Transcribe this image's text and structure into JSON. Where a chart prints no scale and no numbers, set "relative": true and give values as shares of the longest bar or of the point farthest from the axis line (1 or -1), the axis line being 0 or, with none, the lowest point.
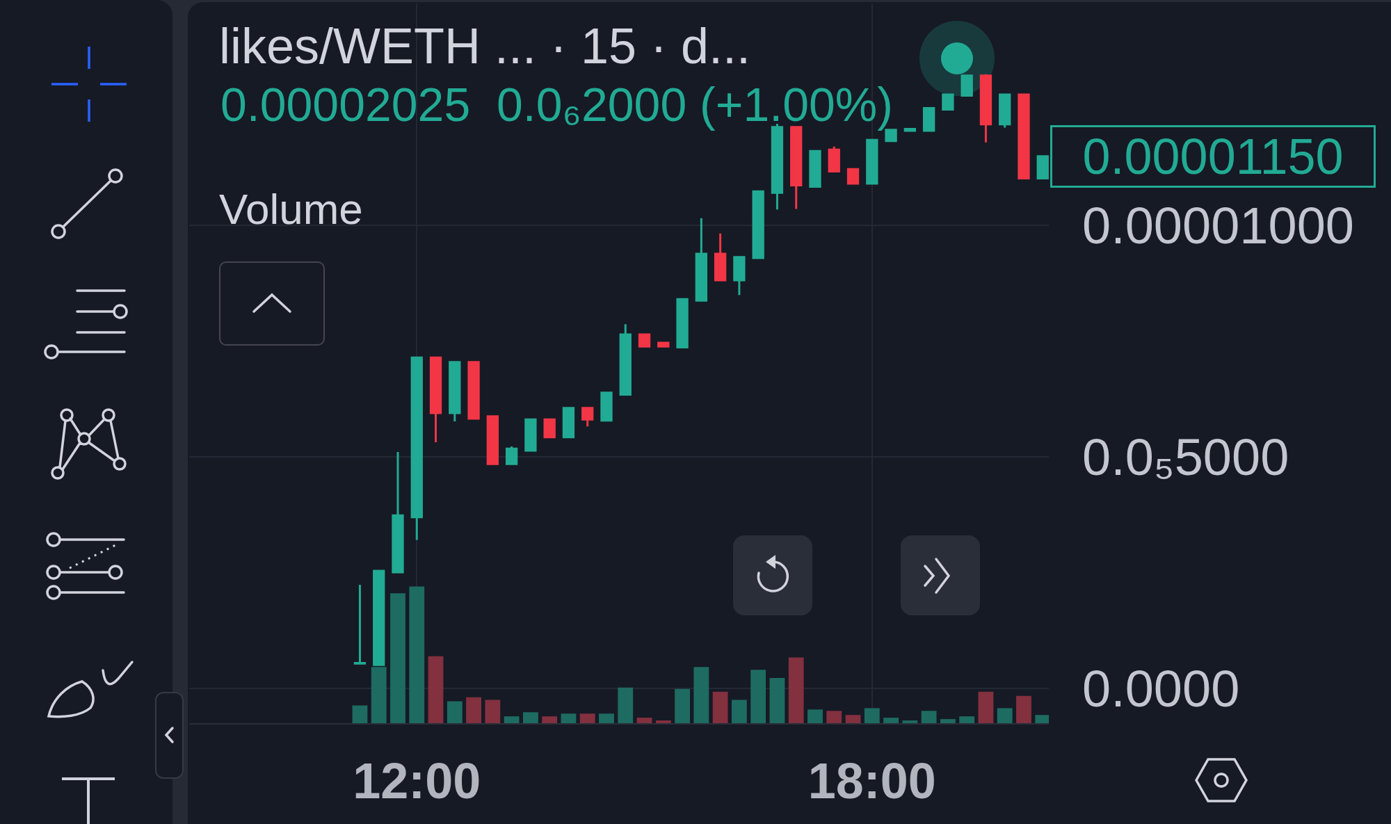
{
  "chart_data": [
    {
      "type": "candlestick",
      "title": "likes/WETH ... · 15 · d...",
      "annotations": [
        "0.00002025",
        "0.0₆2000 (+1.00%)",
        "0.00001150"
      ],
      "x": [
        11.25,
        11.5,
        11.75,
        12,
        12.25,
        12.5,
        12.75,
        13,
        13.25,
        13.5,
        13.75,
        14,
        14.25,
        14.5,
        14.75,
        15,
        15.25,
        15.5,
        15.75,
        16,
        16.25,
        16.5,
        16.75,
        17,
        17.25,
        17.5,
        17.75,
        18,
        18.25,
        18.5,
        18.75,
        19,
        19.25,
        19.5,
        19.75,
        20,
        20.25
      ],
      "ohlc": [
        [
          5.4e-07,
          2.24e-06,
          5.4e-07,
          5.5e-07
        ],
        [
          5.1e-07,
          2.54e-06,
          5.1e-07,
          2.54e-06
        ],
        [
          2.51e-06,
          5.11e-06,
          2.51e-06,
          3.74e-06
        ],
        [
          3.7e-06,
          7.15e-06,
          3.21e-06,
          7.15e-06
        ],
        [
          7.15e-06,
          7.15e-06,
          5.32e-06,
          5.95e-06
        ],
        [
          5.95e-06,
          7.05e-06,
          5.77e-06,
          7.05e-06
        ],
        [
          7.05e-06,
          7.05e-06,
          5.83e-06,
          5.83e-06
        ],
        [
          5.88e-06,
          5.88e-06,
          4.85e-06,
          4.85e-06
        ],
        [
          4.85e-06,
          5.23e-06,
          4.85e-06,
          5.18e-06
        ],
        [
          5.14e-06,
          5.81e-06,
          5.14e-06,
          5.81e-06
        ],
        [
          5.81e-06,
          5.81e-06,
          5.43e-06,
          5.43e-06
        ],
        [
          5.43e-06,
          6.06e-06,
          5.43e-06,
          6.06e-06
        ],
        [
          6.06e-06,
          6.06e-06,
          5.66e-06,
          5.81e-06
        ],
        [
          5.79e-06,
          6.39e-06,
          5.79e-06,
          6.39e-06
        ],
        [
          6.35e-06,
          7.87e-06,
          6.35e-06,
          7.65e-06
        ],
        [
          7.65e-06,
          7.65e-06,
          7.39e-06,
          7.39e-06
        ],
        [
          7.47e-06,
          7.47e-06,
          7.39e-06,
          7.39e-06
        ],
        [
          7.37e-06,
          8.41e-06,
          7.37e-06,
          8.41e-06
        ],
        [
          8.38e-06,
          1.016e-05,
          8.38e-06,
          9.39e-06
        ],
        [
          9.39e-06,
          9.83e-06,
          8.82e-06,
          8.82e-06
        ],
        [
          8.82e-06,
          9.32e-06,
          8.5e-06,
          9.32e-06
        ],
        [
          9.3e-06,
          1.074e-05,
          9.3e-06,
          1.074e-05
        ],
        [
          1.071e-05,
          1.22e-05,
          1.035e-05,
          1.213e-05
        ],
        [
          1.213e-05,
          1.213e-05,
          1.036e-05,
          1.087e-05
        ],
        [
          1.084e-05,
          1.161e-05,
          1.084e-05,
          1.161e-05
        ],
        [
          1.164e-05,
          1.171e-05,
          1.117e-05,
          1.117e-05
        ],
        [
          1.122e-05,
          1.122e-05,
          1.091e-05,
          1.091e-05
        ],
        [
          1.091e-05,
          1.185e-05,
          1.091e-05,
          1.185e-05
        ],
        [
          1.183e-05,
          1.207e-05,
          1.183e-05,
          1.207e-05
        ],
        [
          1.205e-05,
          1.209e-05,
          1.205e-05,
          1.209e-05
        ],
        [
          1.205e-05,
          1.254e-05,
          1.205e-05,
          1.254e-05
        ],
        [
          1.251e-05,
          1.283e-05,
          1.251e-05,
          1.283e-05
        ],
        [
          1.281e-05,
          1.324e-05,
          1.281e-05,
          1.324e-05
        ],
        [
          1.324e-05,
          1.327e-05,
          1.18e-05,
          1.219e-05
        ],
        [
          1.219e-05,
          1.283e-05,
          1.212e-05,
          1.283e-05
        ],
        [
          1.283e-05,
          1.283e-05,
          1.102e-05,
          1.102e-05
        ],
        [
          1.102e-05,
          1.15e-05,
          1.102e-05,
          1.15e-05
        ]
      ],
      "xlim": [
        9,
        20.33
      ],
      "xticks": [
        {
          "value": 12,
          "label": "12:00"
        },
        {
          "value": 18,
          "label": "18:00"
        }
      ],
      "ylim": [
        -7.5e-07,
        1.48e-05
      ],
      "yticks": [
        {
          "value": 0,
          "label": "0.0000"
        },
        {
          "value": 5e-06,
          "label": "0.0₅5000"
        },
        {
          "value": 1e-05,
          "label": "0.00001000"
        }
      ],
      "grid": true
    },
    {
      "type": "bar",
      "title": "Volume",
      "relative": true,
      "tick_labels": false,
      "x": [
        11.25,
        11.5,
        11.75,
        12,
        12.25,
        12.5,
        12.75,
        13,
        13.25,
        13.5,
        13.75,
        14,
        14.25,
        14.5,
        14.75,
        15,
        15.25,
        15.5,
        15.75,
        16,
        16.25,
        16.5,
        16.75,
        17,
        17.25,
        17.5,
        17.75,
        18,
        18.25,
        18.5,
        18.75,
        19,
        19.25,
        19.5,
        19.75,
        20,
        20.25
      ],
      "xlim": [
        9,
        20.33
      ],
      "values": [
        0.13,
        0.41,
        0.95,
        1,
        0.49,
        0.16,
        0.19,
        0.17,
        0.05,
        0.08,
        0.05,
        0.07,
        0.07,
        0.07,
        0.26,
        0.04,
        0.02,
        0.25,
        0.41,
        0.23,
        0.17,
        0.39,
        0.33,
        0.48,
        0.1,
        0.09,
        0.06,
        0.11,
        0.04,
        0.02,
        0.09,
        0.03,
        0.05,
        0.23,
        0.11,
        0.2,
        0.06
      ],
      "colors": [
        "#1e6b62",
        "#1e6b62",
        "#1e6b62",
        "#1e6b62",
        "#83303f",
        "#1e6b62",
        "#83303f",
        "#83303f",
        "#1e6b62",
        "#1e6b62",
        "#83303f",
        "#1e6b62",
        "#83303f",
        "#1e6b62",
        "#1e6b62",
        "#83303f",
        "#83303f",
        "#1e6b62",
        "#1e6b62",
        "#83303f",
        "#1e6b62",
        "#1e6b62",
        "#1e6b62",
        "#83303f",
        "#1e6b62",
        "#83303f",
        "#83303f",
        "#1e6b62",
        "#1e6b62",
        "#1e6b62",
        "#1e6b62",
        "#1e6b62",
        "#1e6b62",
        "#83303f",
        "#1e6b62",
        "#83303f",
        "#1e6b62"
      ]
    }
  ]
}
